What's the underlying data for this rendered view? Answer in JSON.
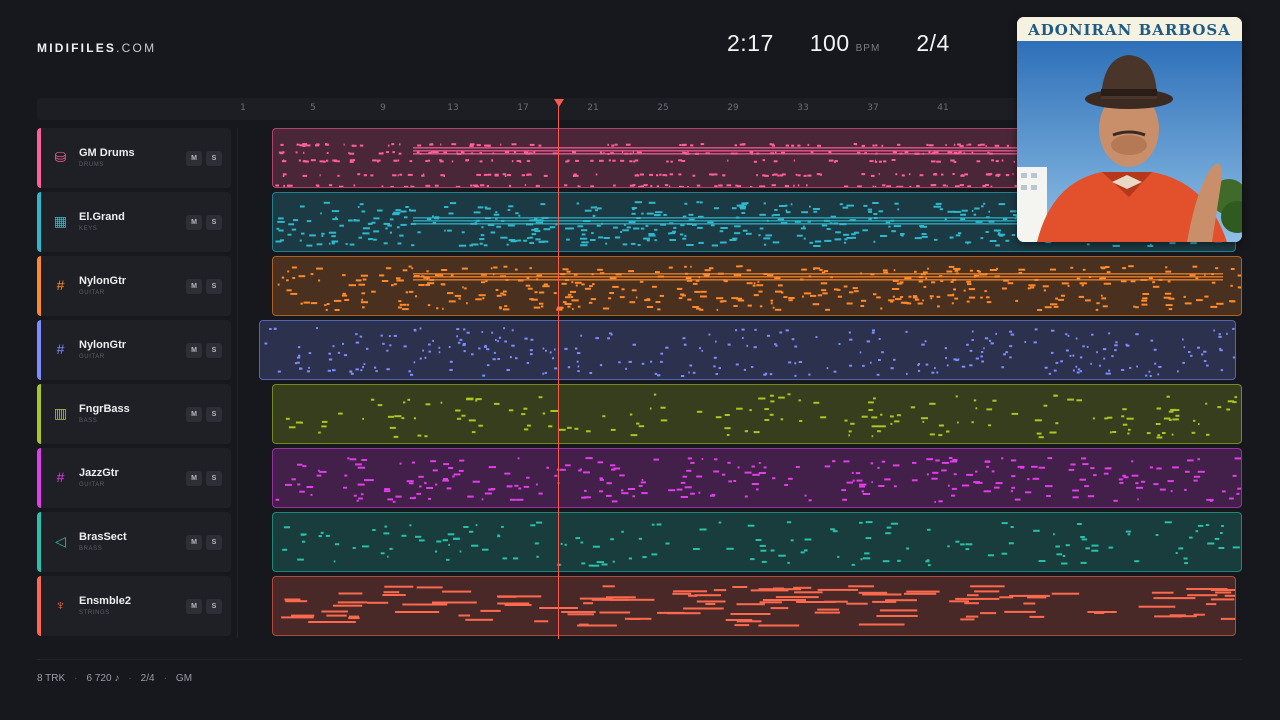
{
  "brand": {
    "bold": "MIDIFILES",
    "light": ".COM"
  },
  "header": {
    "time": "2:17",
    "tempo": "100",
    "tempo_unit": "BPM",
    "meter": "2/4"
  },
  "ruler": {
    "ticks": [
      "1",
      "5",
      "9",
      "13",
      "17",
      "21",
      "25",
      "29",
      "33",
      "37",
      "41"
    ]
  },
  "tracks": [
    {
      "name": "GM Drums",
      "category": "DRUMS",
      "color": "#ff5f9a",
      "icon": "drum-icon",
      "glyph": "⛁"
    },
    {
      "name": "El.Grand",
      "category": "KEYS",
      "color": "#2fb8cc",
      "icon": "piano-icon",
      "glyph": "▦"
    },
    {
      "name": "NylonGtr",
      "category": "GUITAR",
      "color": "#ff8a2a",
      "icon": "guitar-fretboard-icon",
      "glyph": "#"
    },
    {
      "name": "NylonGtr",
      "category": "GUITAR",
      "color": "#7d8cff",
      "icon": "guitar-fretboard-icon",
      "glyph": "#"
    },
    {
      "name": "FngrBass",
      "category": "BASS",
      "color": "#a8c820",
      "icon": "bass-amp-icon",
      "glyph": "▥"
    },
    {
      "name": "JazzGtr",
      "category": "GUITAR",
      "color": "#e03ee8",
      "icon": "guitar-fretboard-icon",
      "glyph": "#"
    },
    {
      "name": "BrasSect",
      "category": "BRASS",
      "color": "#26c2ac",
      "icon": "horn-icon",
      "glyph": "◁"
    },
    {
      "name": "Ensmble2",
      "category": "STRINGS",
      "color": "#ff6a4e",
      "icon": "violin-icon",
      "glyph": "♆"
    }
  ],
  "buttons": {
    "mute": "M",
    "solo": "S"
  },
  "album_cover": {
    "title": "ADONIRAN BARBOSA"
  },
  "footer": {
    "tracks": "8 TRK",
    "notes": "6 720 ♪",
    "meter": "2/4",
    "standard": "GM"
  }
}
